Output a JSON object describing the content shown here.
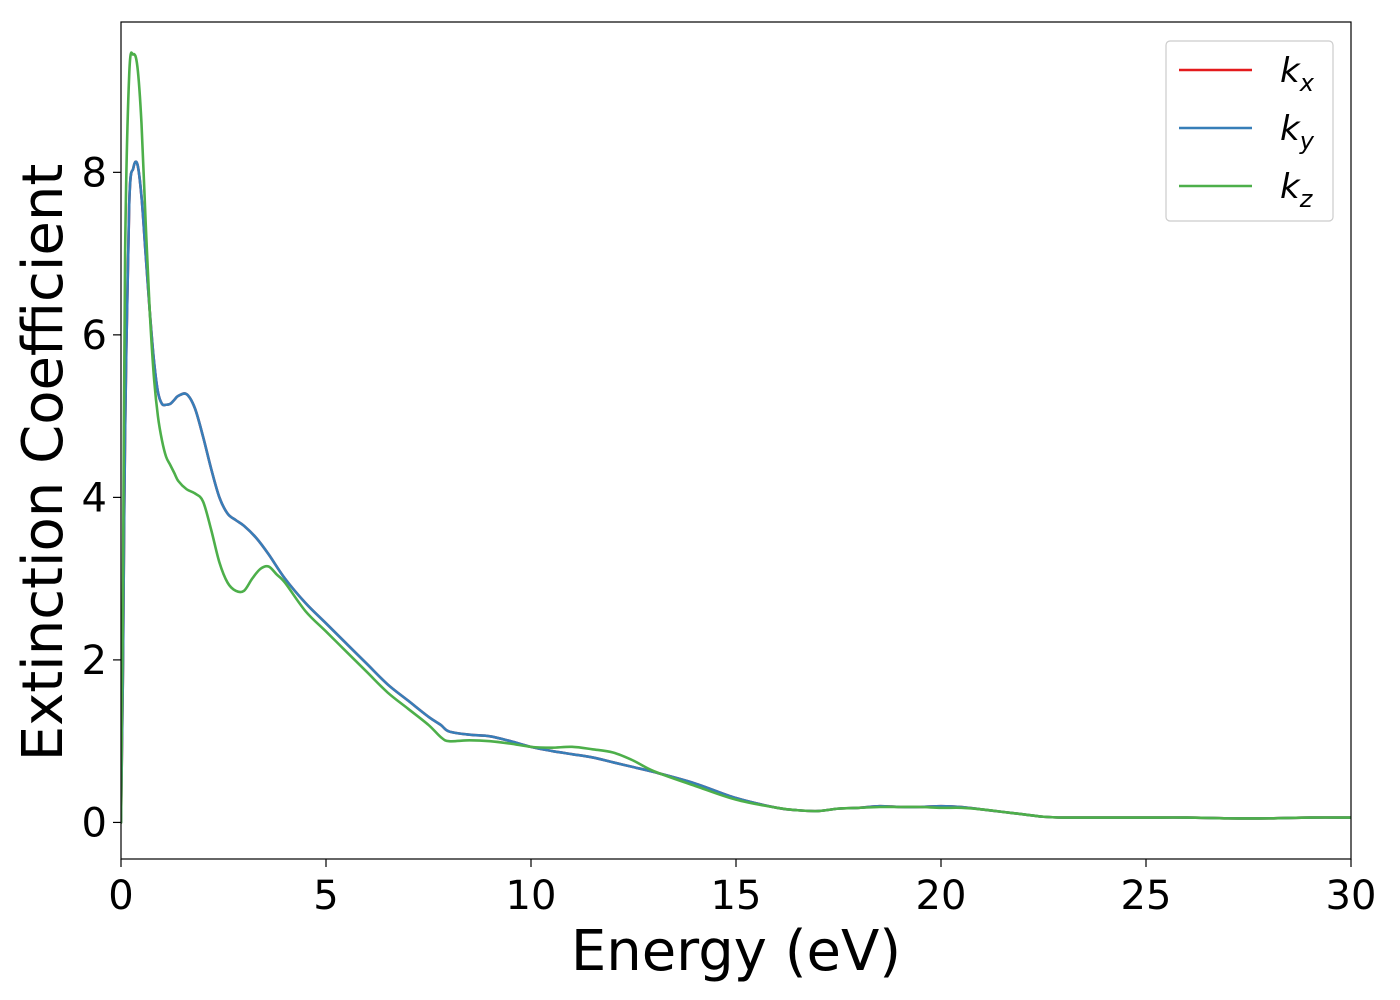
{
  "chart_data": {
    "type": "line",
    "title": "",
    "xlabel": "Energy (eV)",
    "ylabel": "Extinction Coefficient",
    "xlim": [
      0,
      30
    ],
    "ylim": [
      -0.45,
      9.85
    ],
    "xticks": [
      0,
      5,
      10,
      15,
      20,
      25,
      30
    ],
    "yticks": [
      0,
      2,
      4,
      6,
      8
    ],
    "grid": false,
    "legend_position": "top-right",
    "series": [
      {
        "name": "k_x",
        "legend_main": "k",
        "legend_sub": "x",
        "color": "#e41a1c",
        "x": [
          0,
          0.05,
          0.1,
          0.2,
          0.3,
          0.4,
          0.5,
          0.6,
          0.7,
          0.8,
          0.9,
          1.0,
          1.1,
          1.2,
          1.3,
          1.4,
          1.6,
          1.8,
          2.0,
          2.2,
          2.4,
          2.6,
          2.8,
          3.0,
          3.3,
          3.6,
          4.0,
          4.5,
          5.0,
          5.5,
          6.0,
          6.5,
          7.0,
          7.5,
          7.8,
          8.0,
          8.5,
          9.0,
          9.5,
          10.0,
          10.5,
          11.0,
          11.5,
          12.0,
          12.5,
          13.0,
          14.0,
          15.0,
          16.0,
          16.5,
          17.0,
          17.5,
          18.0,
          18.5,
          19.0,
          19.5,
          20.0,
          20.5,
          21.0,
          21.5,
          22.0,
          22.5,
          23.0,
          24.0,
          25.0,
          26.0,
          27.0,
          28.0,
          29.0,
          30.0
        ],
        "y": [
          0,
          2.0,
          4.8,
          7.6,
          8.05,
          8.1,
          7.7,
          7.0,
          6.3,
          5.7,
          5.3,
          5.15,
          5.14,
          5.15,
          5.2,
          5.25,
          5.27,
          5.1,
          4.75,
          4.35,
          4.0,
          3.8,
          3.72,
          3.65,
          3.5,
          3.3,
          3.0,
          2.7,
          2.45,
          2.2,
          1.95,
          1.7,
          1.5,
          1.3,
          1.2,
          1.12,
          1.08,
          1.06,
          1.0,
          0.93,
          0.88,
          0.84,
          0.8,
          0.74,
          0.68,
          0.62,
          0.48,
          0.3,
          0.18,
          0.15,
          0.14,
          0.17,
          0.18,
          0.2,
          0.19,
          0.19,
          0.2,
          0.19,
          0.16,
          0.13,
          0.1,
          0.07,
          0.06,
          0.06,
          0.06,
          0.06,
          0.05,
          0.05,
          0.06,
          0.06
        ]
      },
      {
        "name": "k_y",
        "legend_main": "k",
        "legend_sub": "y",
        "color": "#377eb8",
        "x": [
          0,
          0.05,
          0.1,
          0.2,
          0.3,
          0.4,
          0.5,
          0.6,
          0.7,
          0.8,
          0.9,
          1.0,
          1.1,
          1.2,
          1.3,
          1.4,
          1.6,
          1.8,
          2.0,
          2.2,
          2.4,
          2.6,
          2.8,
          3.0,
          3.3,
          3.6,
          4.0,
          4.5,
          5.0,
          5.5,
          6.0,
          6.5,
          7.0,
          7.5,
          7.8,
          8.0,
          8.5,
          9.0,
          9.5,
          10.0,
          10.5,
          11.0,
          11.5,
          12.0,
          12.5,
          13.0,
          14.0,
          15.0,
          16.0,
          16.5,
          17.0,
          17.5,
          18.0,
          18.5,
          19.0,
          19.5,
          20.0,
          20.5,
          21.0,
          21.5,
          22.0,
          22.5,
          23.0,
          24.0,
          25.0,
          26.0,
          27.0,
          28.0,
          29.0,
          30.0
        ],
        "y": [
          0,
          2.0,
          4.8,
          7.6,
          8.05,
          8.1,
          7.7,
          7.0,
          6.3,
          5.7,
          5.3,
          5.15,
          5.14,
          5.15,
          5.2,
          5.25,
          5.27,
          5.1,
          4.75,
          4.35,
          4.0,
          3.8,
          3.72,
          3.65,
          3.5,
          3.3,
          3.0,
          2.7,
          2.45,
          2.2,
          1.95,
          1.7,
          1.5,
          1.3,
          1.2,
          1.12,
          1.08,
          1.06,
          1.0,
          0.93,
          0.88,
          0.84,
          0.8,
          0.74,
          0.68,
          0.62,
          0.48,
          0.3,
          0.18,
          0.15,
          0.14,
          0.17,
          0.18,
          0.2,
          0.19,
          0.19,
          0.2,
          0.19,
          0.16,
          0.13,
          0.1,
          0.07,
          0.06,
          0.06,
          0.06,
          0.06,
          0.05,
          0.05,
          0.06,
          0.06
        ]
      },
      {
        "name": "k_z",
        "legend_main": "k",
        "legend_sub": "z",
        "color": "#4daf4a",
        "x": [
          0,
          0.05,
          0.1,
          0.2,
          0.3,
          0.4,
          0.5,
          0.6,
          0.7,
          0.8,
          0.9,
          1.0,
          1.1,
          1.2,
          1.3,
          1.4,
          1.6,
          1.8,
          2.0,
          2.2,
          2.4,
          2.6,
          2.8,
          3.0,
          3.2,
          3.4,
          3.6,
          3.8,
          4.0,
          4.5,
          5.0,
          5.5,
          6.0,
          6.5,
          7.0,
          7.5,
          7.8,
          8.0,
          8.5,
          9.0,
          9.5,
          10.0,
          10.5,
          11.0,
          11.5,
          12.0,
          12.5,
          13.0,
          14.0,
          15.0,
          16.0,
          16.5,
          17.0,
          17.5,
          18.0,
          18.5,
          19.0,
          19.5,
          20.0,
          20.5,
          21.0,
          21.5,
          22.0,
          22.5,
          23.0,
          24.0,
          25.0,
          26.0,
          27.0,
          28.0,
          29.0,
          30.0
        ],
        "y": [
          0,
          3.0,
          7.0,
          9.2,
          9.45,
          9.3,
          8.6,
          7.4,
          6.3,
          5.5,
          5.0,
          4.7,
          4.5,
          4.4,
          4.3,
          4.2,
          4.1,
          4.05,
          3.95,
          3.6,
          3.2,
          2.95,
          2.85,
          2.85,
          3.0,
          3.12,
          3.15,
          3.05,
          2.95,
          2.6,
          2.35,
          2.1,
          1.85,
          1.6,
          1.4,
          1.2,
          1.05,
          1.0,
          1.01,
          1.0,
          0.97,
          0.93,
          0.92,
          0.93,
          0.9,
          0.86,
          0.76,
          0.63,
          0.45,
          0.28,
          0.18,
          0.15,
          0.14,
          0.17,
          0.18,
          0.19,
          0.19,
          0.19,
          0.18,
          0.18,
          0.16,
          0.13,
          0.1,
          0.07,
          0.06,
          0.06,
          0.06,
          0.06,
          0.05,
          0.05,
          0.06,
          0.06
        ]
      }
    ]
  }
}
